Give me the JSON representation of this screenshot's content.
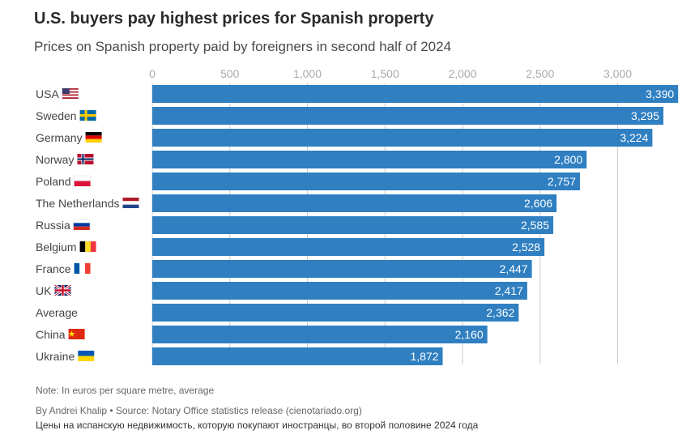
{
  "header": {
    "title": "U.S. buyers pay highest prices for Spanish property",
    "subtitle": "Prices on Spanish property paid by foreigners in second half of 2024"
  },
  "footer": {
    "note": "Note: In euros per square metre, average",
    "credit": "By Andrei Khalip • Source: Notary Office statistics release (cienotariado.org)",
    "credit_ru": "Цены на испанскую недвижимость, которую покупают иностранцы, во второй половине 2024 года"
  },
  "colors": {
    "bar": "#2f7fc1",
    "grid": "#cccccc",
    "tick_label": "#aaaaaa",
    "bar_label": "#ffffff"
  },
  "chart_data": {
    "type": "bar",
    "orientation": "horizontal",
    "categories": [
      "USA",
      "Sweden",
      "Germany",
      "Norway",
      "Poland",
      "The Netherlands",
      "Russia",
      "Belgium",
      "France",
      "UK",
      "Average",
      "China",
      "Ukraine"
    ],
    "flags": [
      "us",
      "se",
      "de",
      "no",
      "pl",
      "nl",
      "ru",
      "be",
      "fr",
      "uk",
      "",
      "cn",
      "ua"
    ],
    "values": [
      3390,
      3295,
      3224,
      2800,
      2757,
      2606,
      2585,
      2528,
      2447,
      2417,
      2362,
      2160,
      1872
    ],
    "value_labels": [
      "3,390",
      "3,295",
      "3,224",
      "2,800",
      "2,757",
      "2,606",
      "2,585",
      "2,528",
      "2,447",
      "2,417",
      "2,362",
      "2,160",
      "1,872"
    ],
    "ticks": [
      0,
      500,
      1000,
      1500,
      2000,
      2500,
      3000
    ],
    "tick_labels": [
      "0",
      "500",
      "1,000",
      "1,500",
      "2,000",
      "2,500",
      "3,000"
    ],
    "xlim": [
      0,
      3400
    ],
    "grid": true,
    "legend": "none"
  }
}
